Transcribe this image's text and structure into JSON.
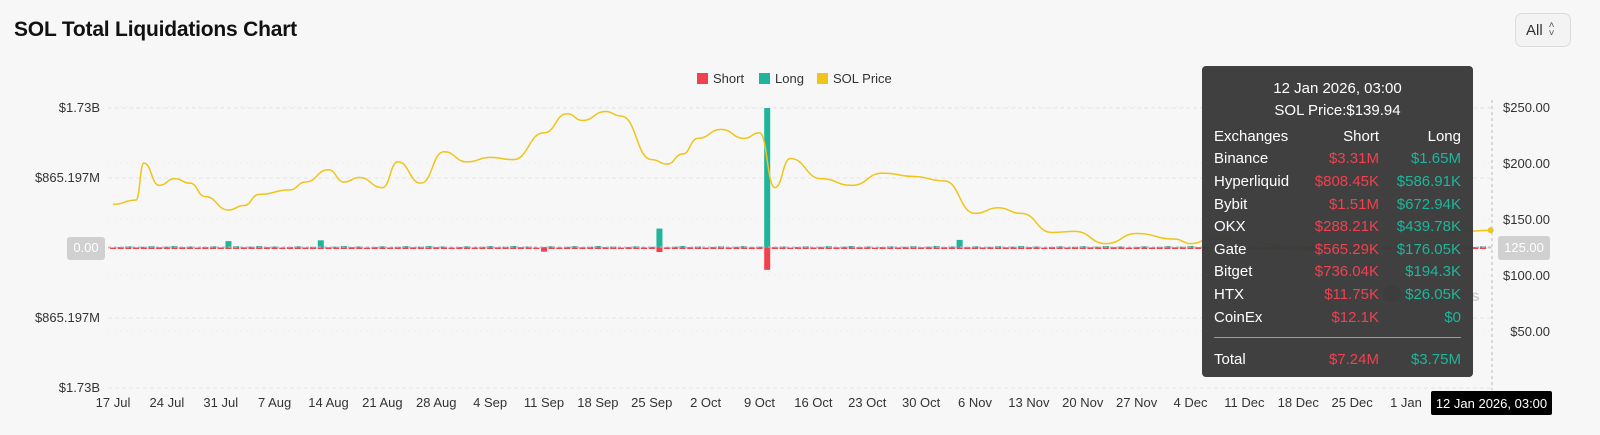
{
  "title": "SOL Total Liquidations Chart",
  "range_select": {
    "value": "All",
    "icon": "chevron-updown-icon"
  },
  "watermark": "coinglass",
  "chart_data": {
    "type": "bar",
    "legend": [
      {
        "name": "Short",
        "color": "#f0414f"
      },
      {
        "name": "Long",
        "color": "#1fb59b"
      },
      {
        "name": "SOL Price",
        "color": "#f0c419"
      }
    ],
    "legend_position": "top-center",
    "y_left_ticks": [
      "$1.73B",
      "$865.197M",
      "0.00",
      "$865.197M",
      "$1.73B"
    ],
    "y_left_range": [
      -1730000000,
      1730000000
    ],
    "y_right_ticks": [
      "$250.00",
      "$200.00",
      "$150.00",
      "125.00",
      "$100.00",
      "$50.00"
    ],
    "y_right_range": [
      0,
      250
    ],
    "x_labels": [
      "17 Jul",
      "24 Jul",
      "31 Jul",
      "7 Aug",
      "14 Aug",
      "21 Aug",
      "28 Aug",
      "4 Sep",
      "11 Sep",
      "18 Sep",
      "25 Sep",
      "2 Oct",
      "9 Oct",
      "16 Oct",
      "23 Oct",
      "30 Oct",
      "6 Nov",
      "13 Nov",
      "20 Nov",
      "27 Nov",
      "4 Dec",
      "11 Dec",
      "18 Dec",
      "25 Dec",
      "1 Jan"
    ],
    "x_crosshair_label": "12 Jan 2026, 03:00",
    "y_crosshair_label": "125.00",
    "zero_label": "0.00",
    "grid": true,
    "series": [
      {
        "name": "Long",
        "unit": "USD",
        "spikes": [
          {
            "date": "10 Oct",
            "value": 1730000000
          },
          {
            "date": "26 Sep",
            "value": 240000000
          },
          {
            "date": "1 Aug",
            "value": 85000000
          },
          {
            "date": "13 Aug",
            "value": 95000000
          },
          {
            "date": "4 Nov",
            "value": 100000000
          }
        ],
        "typical": 20000000
      },
      {
        "name": "Short",
        "unit": "USD",
        "spikes": [
          {
            "date": "10 Oct",
            "value": 270000000
          },
          {
            "date": "26 Sep",
            "value": 50000000
          },
          {
            "date": "11 Sep",
            "value": 45000000
          }
        ],
        "typical": 12000000
      },
      {
        "name": "SOL Price",
        "unit": "USD",
        "points": [
          [
            "17 Jul",
            163
          ],
          [
            "20 Jul",
            167
          ],
          [
            "21 Jul",
            200
          ],
          [
            "23 Jul",
            180
          ],
          [
            "25 Jul",
            186
          ],
          [
            "27 Jul",
            182
          ],
          [
            "29 Jul",
            170
          ],
          [
            "1 Aug",
            158
          ],
          [
            "3 Aug",
            162
          ],
          [
            "5 Aug",
            172
          ],
          [
            "9 Aug",
            176
          ],
          [
            "11 Aug",
            183
          ],
          [
            "14 Aug",
            194
          ],
          [
            "16 Aug",
            183
          ],
          [
            "18 Aug",
            187
          ],
          [
            "21 Aug",
            178
          ],
          [
            "23 Aug",
            201
          ],
          [
            "26 Aug",
            182
          ],
          [
            "29 Aug",
            210
          ],
          [
            "1 Sep",
            201
          ],
          [
            "4 Sep",
            205
          ],
          [
            "7 Sep",
            203
          ],
          [
            "11 Sep",
            227
          ],
          [
            "14 Sep",
            244
          ],
          [
            "16 Sep",
            238
          ],
          [
            "19 Sep",
            246
          ],
          [
            "21 Sep",
            242
          ],
          [
            "25 Sep",
            203
          ],
          [
            "27 Sep",
            199
          ],
          [
            "29 Sep",
            208
          ],
          [
            "1 Oct",
            222
          ],
          [
            "4 Oct",
            230
          ],
          [
            "7 Oct",
            222
          ],
          [
            "9 Oct",
            227
          ],
          [
            "11 Oct",
            178
          ],
          [
            "13 Oct",
            204
          ],
          [
            "17 Oct",
            186
          ],
          [
            "21 Oct",
            180
          ],
          [
            "25 Oct",
            191
          ],
          [
            "29 Oct",
            188
          ],
          [
            "2 Nov",
            184
          ],
          [
            "6 Nov",
            155
          ],
          [
            "9 Nov",
            160
          ],
          [
            "12 Nov",
            155
          ],
          [
            "16 Nov",
            138
          ],
          [
            "19 Nov",
            139
          ],
          [
            "23 Nov",
            128
          ],
          [
            "27 Nov",
            137
          ],
          [
            "2 Dec",
            132
          ],
          [
            "4 Dec",
            128
          ],
          [
            "7 Dec",
            133
          ],
          [
            "11 Dec",
            131
          ],
          [
            "15 Dec",
            127
          ],
          [
            "18 Dec",
            122
          ],
          [
            "22 Dec",
            123
          ],
          [
            "25 Dec",
            121
          ],
          [
            "29 Dec",
            124
          ],
          [
            "1 Jan",
            127
          ],
          [
            "5 Jan",
            136
          ],
          [
            "9 Jan",
            139
          ],
          [
            "12 Jan",
            140
          ]
        ]
      }
    ]
  },
  "tooltip": {
    "date": "12 Jan 2026, 03:00",
    "price_label": "SOL Price:",
    "price": "$139.94",
    "headers": [
      "Exchanges",
      "Short",
      "Long"
    ],
    "rows": [
      {
        "exchange": "Binance",
        "short": "$3.31M",
        "long": "$1.65M"
      },
      {
        "exchange": "Hyperliquid",
        "short": "$808.45K",
        "long": "$586.91K"
      },
      {
        "exchange": "Bybit",
        "short": "$1.51M",
        "long": "$672.94K"
      },
      {
        "exchange": "OKX",
        "short": "$288.21K",
        "long": "$439.78K"
      },
      {
        "exchange": "Gate",
        "short": "$565.29K",
        "long": "$176.05K"
      },
      {
        "exchange": "Bitget",
        "short": "$736.04K",
        "long": "$194.3K"
      },
      {
        "exchange": "HTX",
        "short": "$11.75K",
        "long": "$26.05K"
      },
      {
        "exchange": "CoinEx",
        "short": "$12.1K",
        "long": "$0"
      }
    ],
    "total_label": "Total",
    "total_short": "$7.24M",
    "total_long": "$3.75M"
  }
}
